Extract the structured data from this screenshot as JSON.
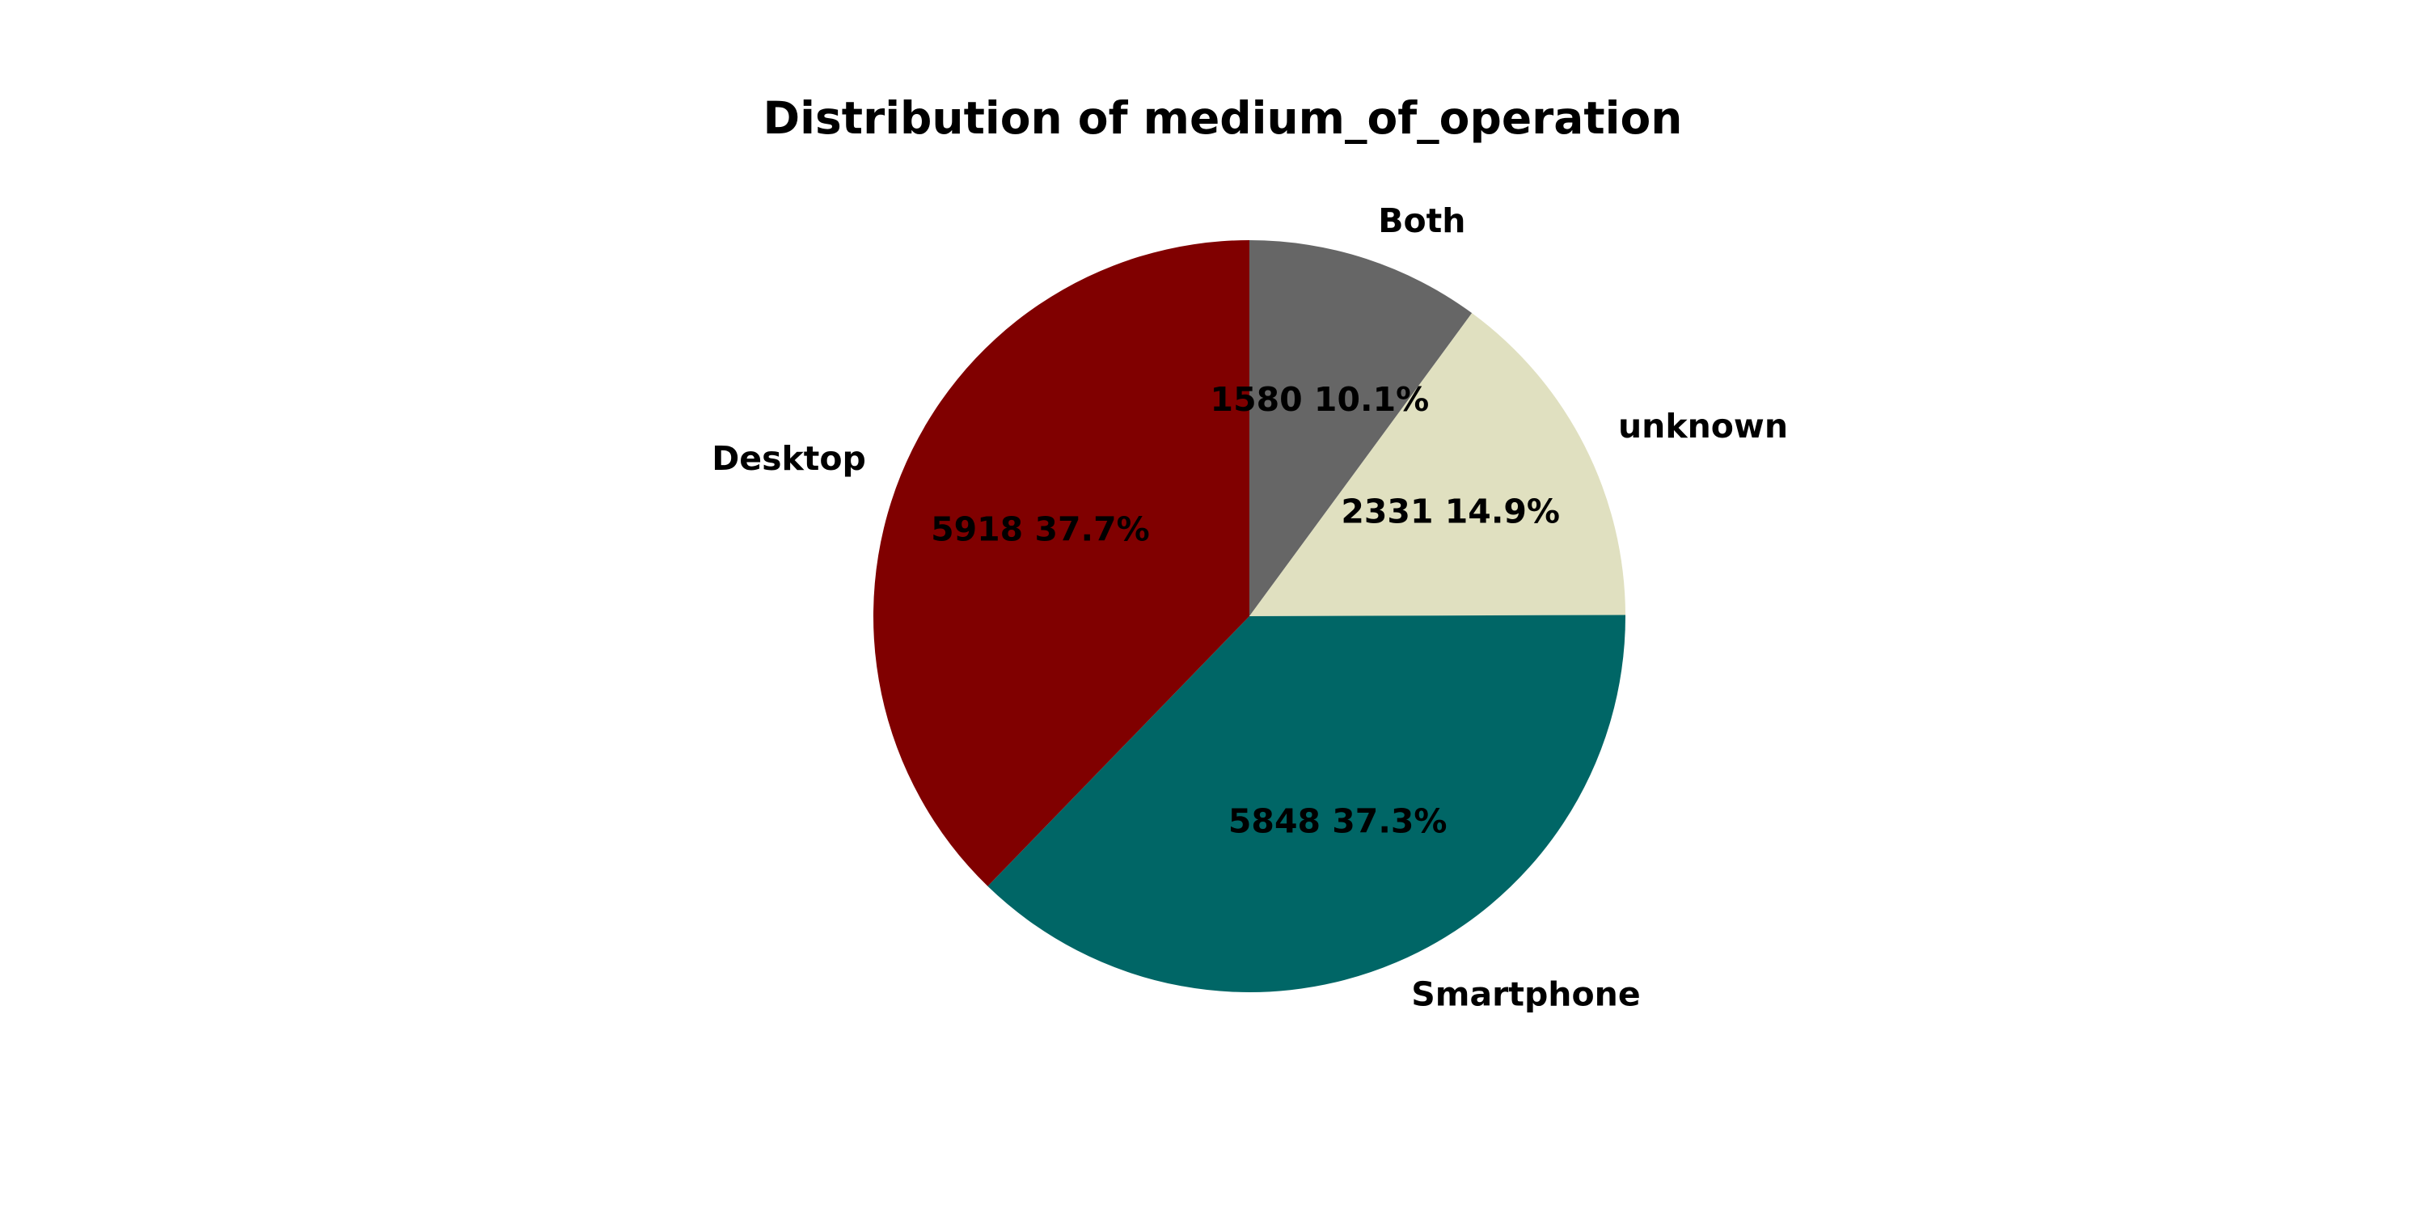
{
  "chart_data": {
    "type": "pie",
    "title": "Distribution of medium_of_operation",
    "startangle_deg": 90,
    "direction": "clockwise",
    "slices": [
      {
        "label": "Both",
        "value": 1580,
        "percent_label": "1580 10.1%",
        "color": "#666666"
      },
      {
        "label": "unknown",
        "value": 2331,
        "percent_label": "2331 14.9%",
        "color": "#E0E0C0"
      },
      {
        "label": "Smartphone",
        "value": 5848,
        "percent_label": "5848 37.3%",
        "color": "#006666"
      },
      {
        "label": "Desktop",
        "value": 5918,
        "percent_label": "5918 37.7%",
        "color": "#800000"
      }
    ]
  }
}
